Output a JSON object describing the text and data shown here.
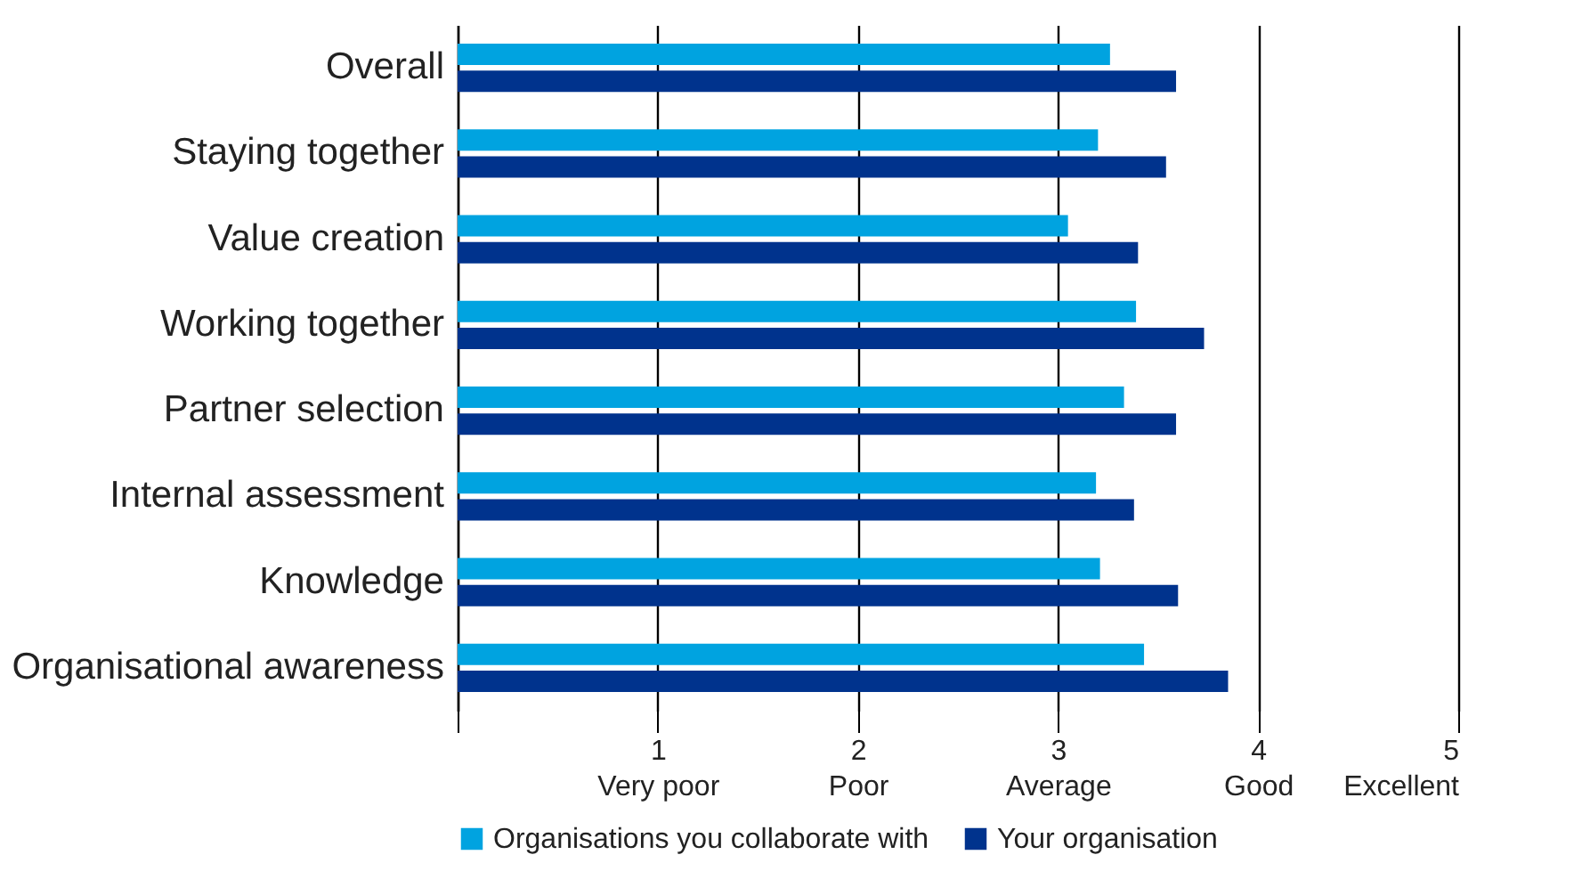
{
  "chart_data": {
    "type": "bar",
    "orientation": "horizontal",
    "categories": [
      "Overall",
      "Staying together",
      "Value creation",
      "Working together",
      "Partner selection",
      "Internal assessment",
      "Knowledge",
      "Organisational awareness"
    ],
    "series": [
      {
        "name": "Organisations you collaborate with",
        "color": "#00a3e0",
        "values": [
          3.26,
          3.2,
          3.05,
          3.39,
          3.33,
          3.19,
          3.21,
          3.43
        ]
      },
      {
        "name": "Your organisation",
        "color": "#00338d",
        "values": [
          3.59,
          3.54,
          3.4,
          3.73,
          3.59,
          3.38,
          3.6,
          3.85
        ]
      }
    ],
    "xlim": [
      0,
      5
    ],
    "xticks": [
      {
        "value": 0,
        "label": null
      },
      {
        "value": 1,
        "label": "1\nVery poor"
      },
      {
        "value": 2,
        "label": "2\nPoor"
      },
      {
        "value": 3,
        "label": "3\nAverage"
      },
      {
        "value": 4,
        "label": "4\nGood"
      },
      {
        "value": 5,
        "label": "5\nExcellent"
      }
    ],
    "grid": "x",
    "legend": "bottom"
  }
}
